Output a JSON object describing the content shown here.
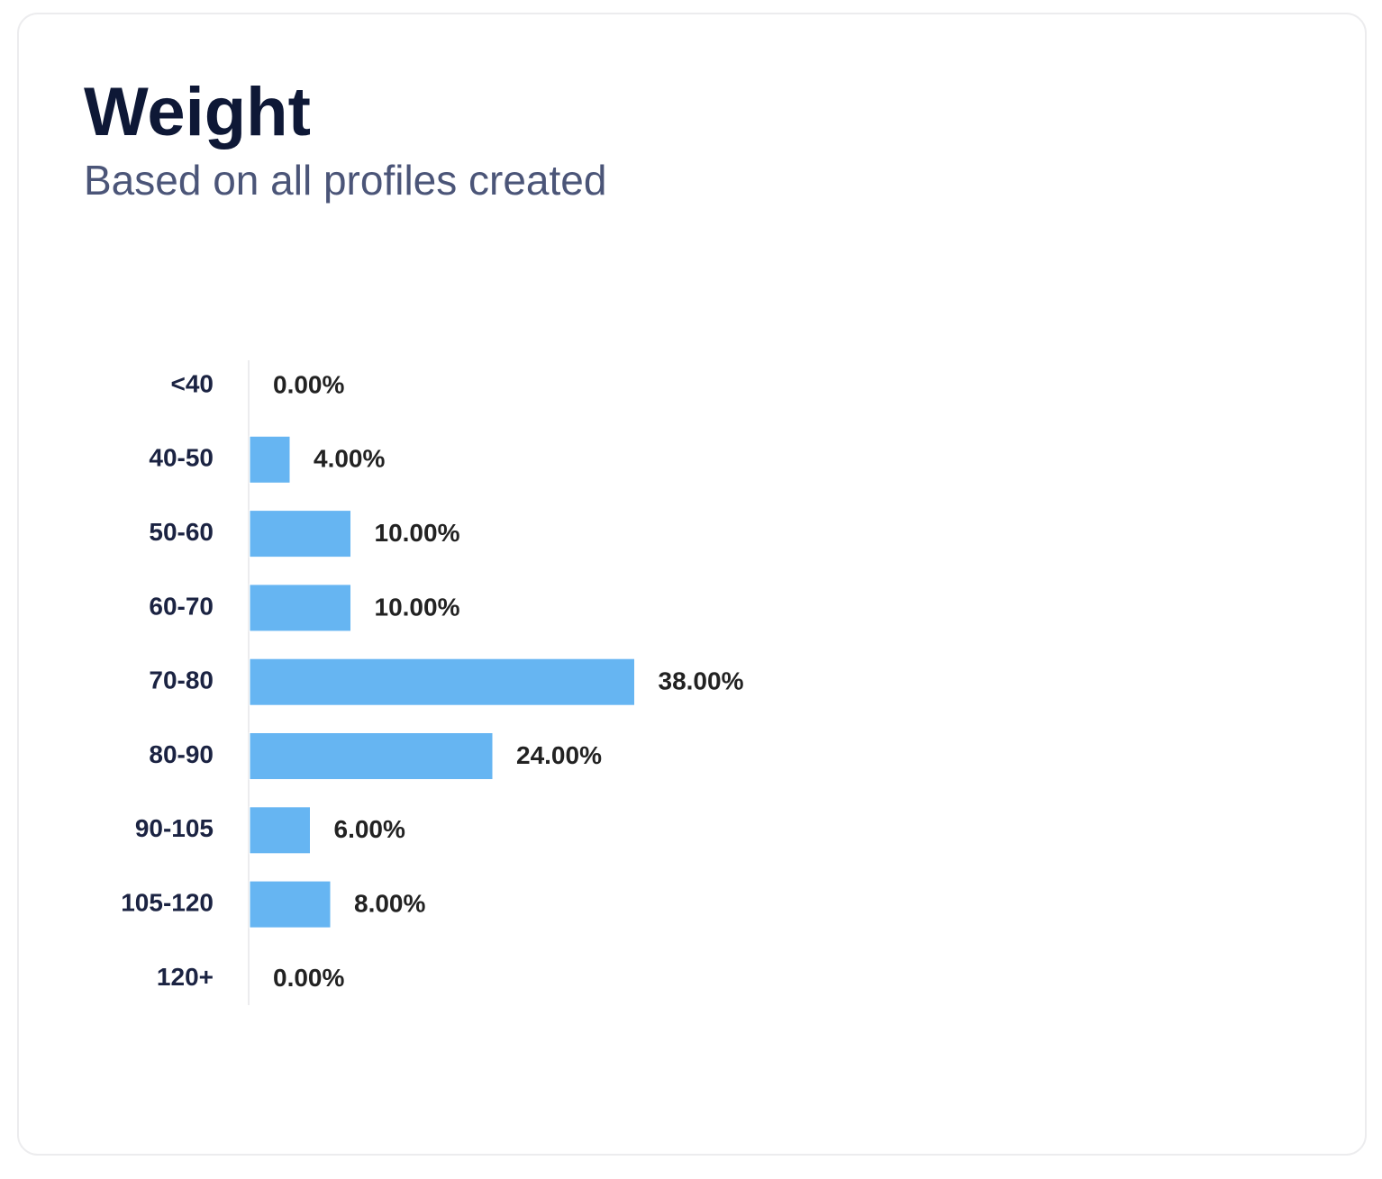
{
  "chart_data": {
    "type": "bar",
    "orientation": "horizontal",
    "title": "Weight",
    "subtitle": "Based on all profiles created",
    "categories": [
      "<40",
      "40-50",
      "50-60",
      "60-70",
      "70-80",
      "80-90",
      "90-105",
      "105-120",
      "120+"
    ],
    "values": [
      0,
      4,
      10,
      10,
      38,
      24,
      6,
      8,
      0
    ],
    "value_labels": [
      "0.00%",
      "4.00%",
      "10.00%",
      "10.00%",
      "38.00%",
      "24.00%",
      "6.00%",
      "8.00%",
      "0.00%"
    ],
    "color": "#66b5f2"
  }
}
